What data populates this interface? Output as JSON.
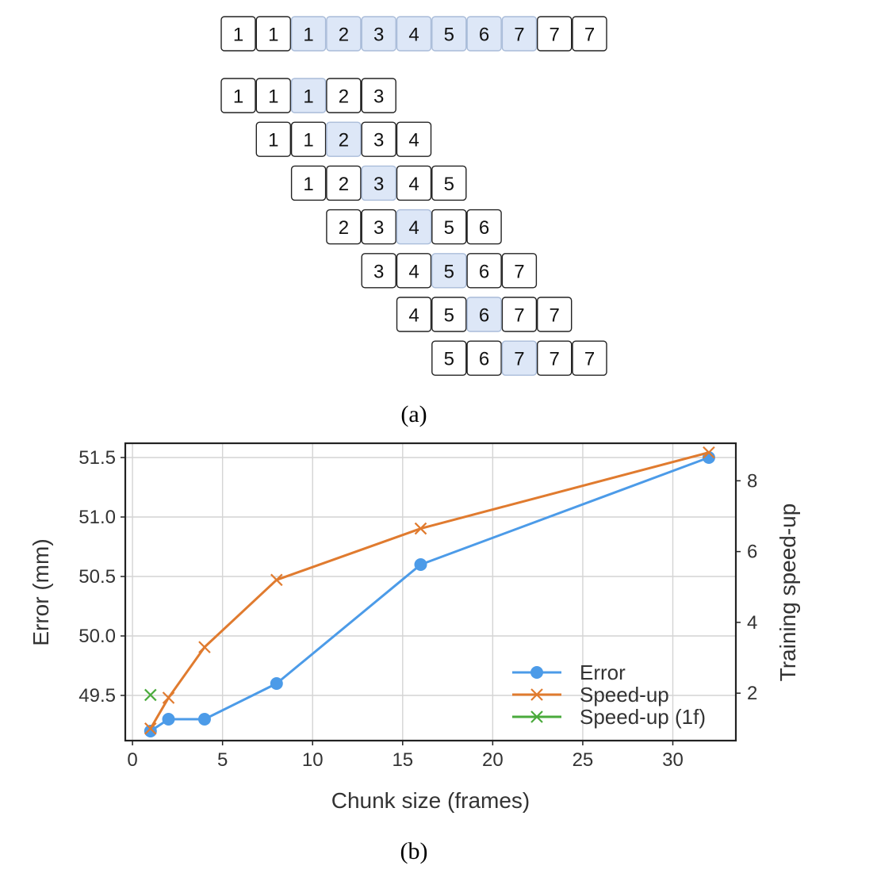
{
  "panel_a": {
    "caption": "(a)",
    "sequence": [
      "1",
      "1",
      "1",
      "2",
      "3",
      "4",
      "5",
      "6",
      "7",
      "7",
      "7"
    ],
    "sequence_highlight_start": 2,
    "sequence_highlight_end": 8,
    "windows": [
      {
        "offset": 0,
        "values": [
          "1",
          "1",
          "1",
          "2",
          "3"
        ]
      },
      {
        "offset": 1,
        "values": [
          "1",
          "1",
          "2",
          "3",
          "4"
        ]
      },
      {
        "offset": 2,
        "values": [
          "1",
          "2",
          "3",
          "4",
          "5"
        ]
      },
      {
        "offset": 3,
        "values": [
          "2",
          "3",
          "4",
          "5",
          "6"
        ]
      },
      {
        "offset": 4,
        "values": [
          "3",
          "4",
          "5",
          "6",
          "7"
        ]
      },
      {
        "offset": 5,
        "values": [
          "4",
          "5",
          "6",
          "7",
          "7"
        ]
      },
      {
        "offset": 6,
        "values": [
          "5",
          "6",
          "7",
          "7",
          "7"
        ]
      }
    ],
    "window_highlight_index": 2,
    "colors": {
      "highlight_fill": "#dde7f7",
      "highlight_stroke": "#a9bcd9"
    }
  },
  "panel_b": {
    "caption": "(b)"
  },
  "chart_data": {
    "type": "line",
    "title": "",
    "xlabel": "Chunk size (frames)",
    "ylabel": "Error (mm)",
    "y2label": "Training speed-up",
    "xlim": [
      -0.4,
      33.5
    ],
    "ylim": [
      49.12,
      51.62
    ],
    "y2lim": [
      0.66,
      9.06
    ],
    "xticks": [
      0,
      5,
      10,
      15,
      20,
      25,
      30
    ],
    "yticks": [
      49.5,
      50.0,
      50.5,
      51.0,
      51.5
    ],
    "ytick_labels": [
      "49.5",
      "50.0",
      "50.5",
      "51.0",
      "51.5"
    ],
    "y2ticks": [
      2,
      4,
      6,
      8
    ],
    "grid": true,
    "legend_position": "bottom-right",
    "series": [
      {
        "name": "Error",
        "axis": "left",
        "marker": "circle",
        "color": "#4c9be8",
        "x": [
          1,
          2,
          4,
          8,
          16,
          32
        ],
        "y": [
          49.2,
          49.3,
          49.3,
          49.6,
          50.6,
          51.5
        ]
      },
      {
        "name": "Speed-up",
        "axis": "right",
        "marker": "x",
        "color": "#e07b2f",
        "x": [
          1,
          2,
          4,
          8,
          16,
          32
        ],
        "y": [
          1.0,
          1.87,
          3.3,
          5.2,
          6.65,
          8.8
        ]
      },
      {
        "name": "Speed-up (1f)",
        "axis": "right",
        "marker": "x",
        "color": "#4aaa3c",
        "x": [
          1
        ],
        "y": [
          1.95
        ]
      }
    ]
  }
}
